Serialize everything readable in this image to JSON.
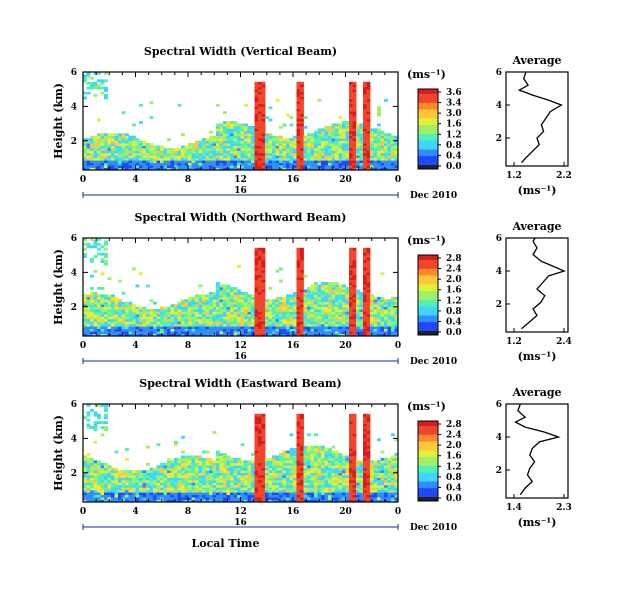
{
  "chart_data": [
    {
      "type": "heatmap",
      "title": "Spectral Width (Vertical Beam)",
      "ylabel": "Height (km)",
      "yticks": [
        "2",
        "4",
        "6"
      ],
      "ylim": [
        0.3,
        6
      ],
      "xticks": [
        "0",
        "4",
        "8",
        "12",
        "16",
        "20",
        "0"
      ],
      "xlim": [
        0,
        24
      ],
      "date_mark": "16",
      "date_label": "Dec 2010",
      "units": "(ms⁻¹)",
      "colorbar_ticks": [
        "3.6",
        "3.4",
        "3.0",
        "1.6",
        "1.2",
        "0.8",
        "0.4",
        "0.0"
      ],
      "colorbar_range": [
        0,
        3.6
      ],
      "spikes_local_time": [
        13.5,
        16.5,
        20.5,
        21.5
      ],
      "cloud_top_km": 1.2,
      "average_profile": {
        "title": "Average",
        "xlabel": "(ms⁻¹)",
        "xticks": [
          "1.2",
          "2.2"
        ],
        "xlim": [
          1.0,
          2.4
        ],
        "yticks": [
          "2",
          "4",
          "6"
        ],
        "points": [
          [
            1.35,
            0.5
          ],
          [
            1.45,
            0.8
          ],
          [
            1.6,
            1.2
          ],
          [
            1.75,
            1.6
          ],
          [
            1.7,
            2.0
          ],
          [
            1.85,
            2.4
          ],
          [
            1.8,
            2.8
          ],
          [
            1.9,
            3.2
          ],
          [
            2.0,
            3.6
          ],
          [
            2.25,
            4.0
          ],
          [
            1.95,
            4.3
          ],
          [
            1.6,
            4.6
          ],
          [
            1.3,
            4.9
          ],
          [
            1.5,
            5.2
          ],
          [
            1.4,
            5.6
          ],
          [
            1.45,
            6.0
          ]
        ]
      }
    },
    {
      "type": "heatmap",
      "title": "Spectral Width (Northward Beam)",
      "ylabel": "Height (km)",
      "yticks": [
        "2",
        "4",
        "6"
      ],
      "ylim": [
        0.3,
        6
      ],
      "xticks": [
        "0",
        "4",
        "8",
        "12",
        "16",
        "20",
        "0"
      ],
      "xlim": [
        0,
        24
      ],
      "date_mark": "16",
      "date_label": "Dec 2010",
      "units": "(ms⁻¹)",
      "colorbar_ticks": [
        "2.8",
        "2.4",
        "2.0",
        "1.6",
        "1.2",
        "0.8",
        "0.4",
        "0.0"
      ],
      "colorbar_range": [
        0,
        2.8
      ],
      "spikes_local_time": [
        13.5,
        16.5,
        20.5,
        21.5
      ],
      "cloud_top_km": 1.5,
      "average_profile": {
        "title": "Average",
        "xlabel": "(ms⁻¹)",
        "xticks": [
          "1.2",
          "2.4"
        ],
        "xlim": [
          1.0,
          2.6
        ],
        "yticks": [
          "2",
          "4",
          "6"
        ],
        "points": [
          [
            1.4,
            0.5
          ],
          [
            1.6,
            0.9
          ],
          [
            1.8,
            1.3
          ],
          [
            1.7,
            1.7
          ],
          [
            1.9,
            2.1
          ],
          [
            2.0,
            2.5
          ],
          [
            1.8,
            2.9
          ],
          [
            1.95,
            3.3
          ],
          [
            2.1,
            3.7
          ],
          [
            2.5,
            4.0
          ],
          [
            2.2,
            4.3
          ],
          [
            1.9,
            4.6
          ],
          [
            1.7,
            5.0
          ],
          [
            1.8,
            5.4
          ],
          [
            1.7,
            5.8
          ],
          [
            1.75,
            6.0
          ]
        ]
      }
    },
    {
      "type": "heatmap",
      "title": "Spectral Width (Eastward Beam)",
      "ylabel": "Height (km)",
      "yticks": [
        "2",
        "4",
        "6"
      ],
      "ylim": [
        0.3,
        6
      ],
      "xticks": [
        "0",
        "4",
        "8",
        "12",
        "16",
        "20",
        "0"
      ],
      "xlim": [
        0,
        24
      ],
      "xlabel": "Local Time",
      "date_mark": "16",
      "date_label": "Dec 2010",
      "units": "(ms⁻¹)",
      "colorbar_ticks": [
        "2.8",
        "2.4",
        "2.0",
        "1.6",
        "1.2",
        "0.8",
        "0.4",
        "0.0"
      ],
      "colorbar_range": [
        0,
        2.8
      ],
      "spikes_local_time": [
        13.5,
        16.5,
        20.5,
        21.5
      ],
      "cloud_top_km": 1.7,
      "average_profile": {
        "title": "Average",
        "xlabel": "(ms⁻¹)",
        "xticks": [
          "1.4",
          "2.3"
        ],
        "xlim": [
          1.2,
          2.5
        ],
        "yticks": [
          "2",
          "4",
          "6"
        ],
        "points": [
          [
            1.5,
            0.5
          ],
          [
            1.6,
            0.9
          ],
          [
            1.75,
            1.3
          ],
          [
            1.65,
            1.7
          ],
          [
            1.7,
            2.1
          ],
          [
            1.8,
            2.5
          ],
          [
            1.7,
            2.9
          ],
          [
            1.75,
            3.3
          ],
          [
            1.9,
            3.7
          ],
          [
            2.3,
            4.0
          ],
          [
            2.0,
            4.3
          ],
          [
            1.6,
            4.6
          ],
          [
            1.4,
            4.9
          ],
          [
            1.6,
            5.2
          ],
          [
            1.45,
            5.6
          ],
          [
            1.5,
            6.0
          ]
        ]
      }
    }
  ]
}
